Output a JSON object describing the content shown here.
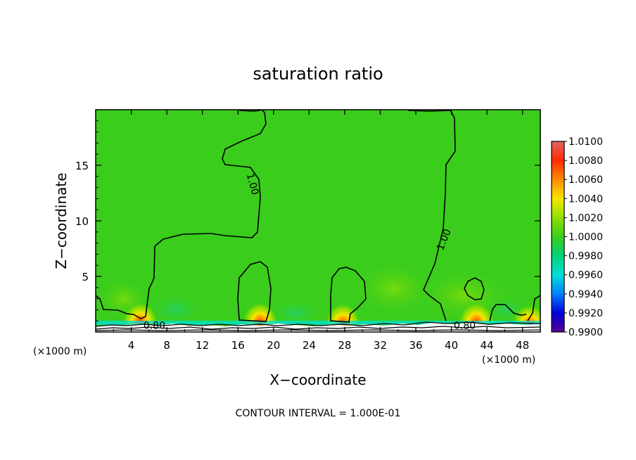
{
  "chart_data": {
    "type": "heatmap",
    "title": "saturation ratio",
    "xlabel": "X−coordinate",
    "ylabel": "Z−coordinate",
    "x_unit_left": "(×1000 m)",
    "x_unit_right": "(×1000 m)",
    "xlim": [
      0,
      50
    ],
    "ylim": [
      0,
      20
    ],
    "xticks": [
      4,
      8,
      12,
      16,
      20,
      24,
      28,
      32,
      36,
      40,
      44,
      48
    ],
    "yticks": [
      5,
      10,
      15
    ],
    "contour_labels": [
      {
        "text": "1.00",
        "x": 17.6,
        "y": 13.3,
        "rotate": 75
      },
      {
        "text": "1.00",
        "x": 39.2,
        "y": 8.3,
        "rotate": -68
      },
      {
        "text": "0.80",
        "x": 6.6,
        "y": 0.55,
        "rotate": 0
      },
      {
        "text": "0.80",
        "x": 41.5,
        "y": 0.55,
        "rotate": 0
      }
    ],
    "footer": "CONTOUR INTERVAL = 1.000E-01",
    "colorbar": {
      "labels": [
        "1.0100",
        "1.0080",
        "1.0060",
        "1.0040",
        "1.0020",
        "1.0000",
        "0.9980",
        "0.9960",
        "0.9940",
        "0.9920",
        "0.9900"
      ],
      "colors": [
        "#e36262",
        "#ff2a00",
        "#ff8c00",
        "#f5e600",
        "#8fe000",
        "#3acd1c",
        "#00d27c",
        "#00e0d8",
        "#0080ff",
        "#0000d8",
        "#5a0096"
      ]
    },
    "field": {
      "background_value": 1.0,
      "background_color": "#3acd1c",
      "surface_band": {
        "color": "#ffffff",
        "z_top": 0.7
      },
      "hotspots": [
        {
          "x": 5.0,
          "z": 1.4,
          "value": 1.006
        },
        {
          "x": 18.5,
          "z": 1.4,
          "value": 1.007
        },
        {
          "x": 27.8,
          "z": 1.3,
          "value": 1.006
        },
        {
          "x": 42.8,
          "z": 1.4,
          "value": 1.006
        },
        {
          "x": 48.8,
          "z": 1.2,
          "value": 1.005
        }
      ]
    }
  }
}
